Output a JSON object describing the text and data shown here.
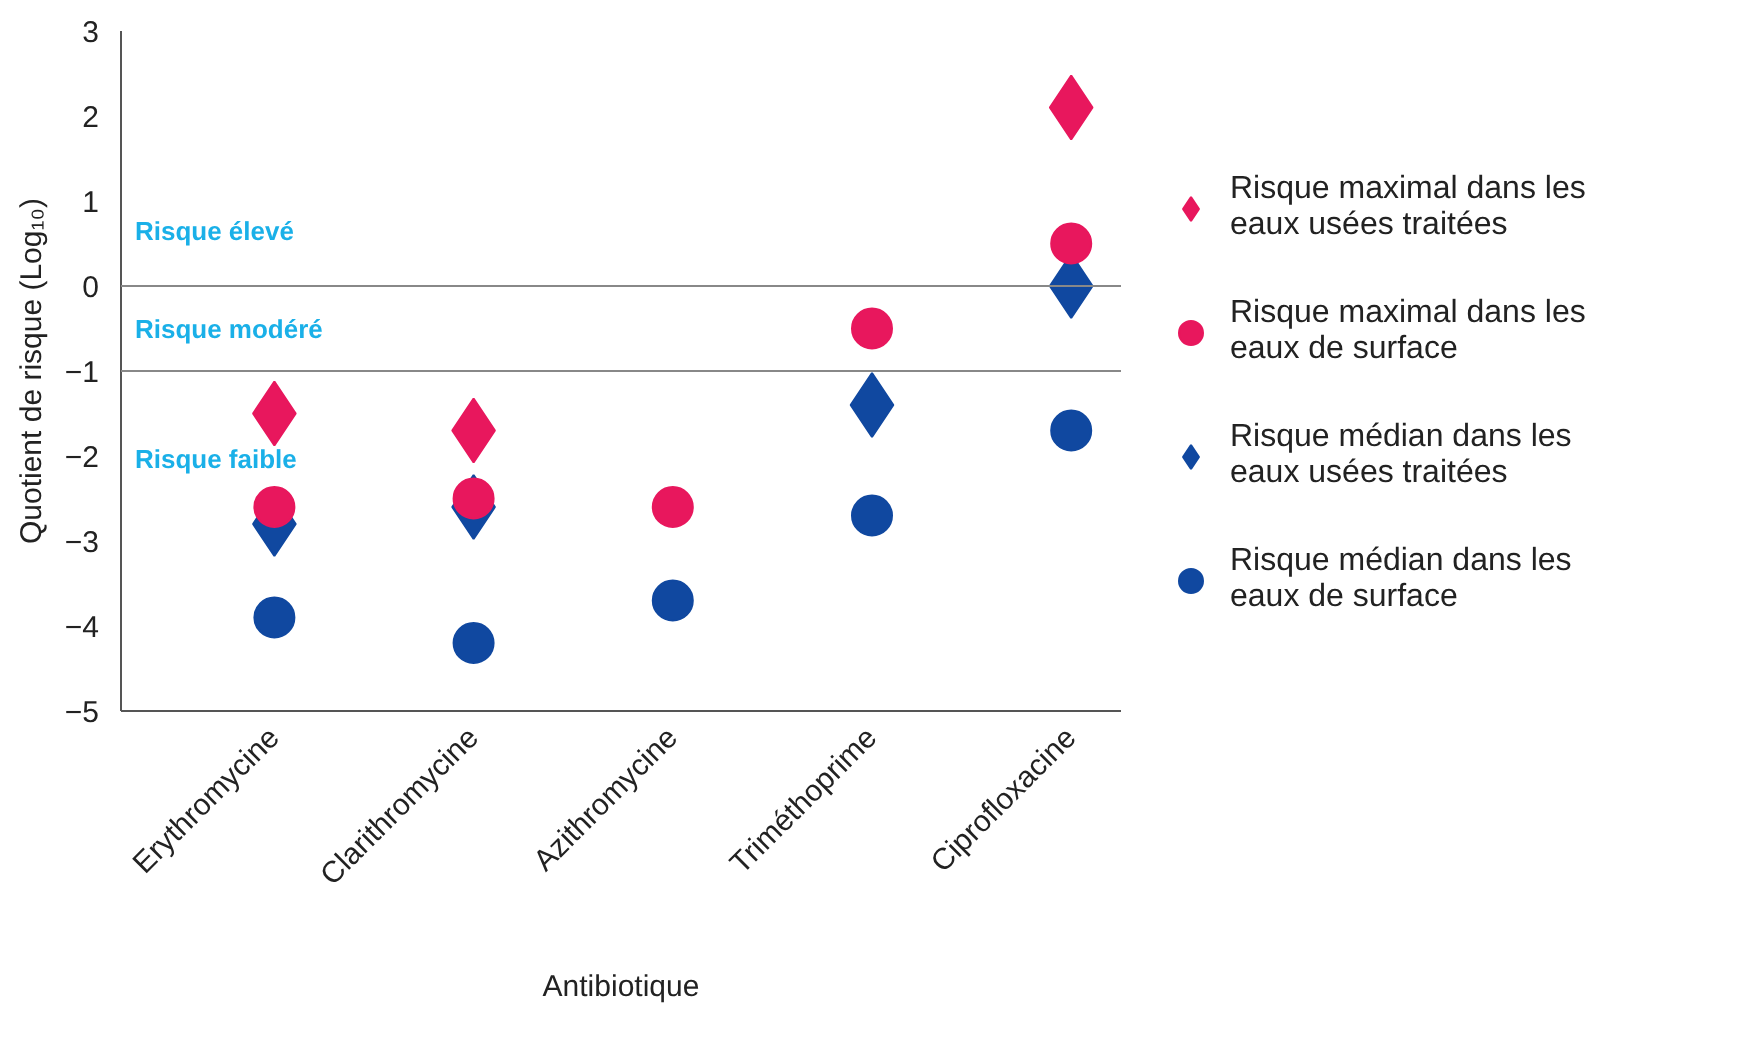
{
  "chart_data": {
    "type": "scatter",
    "xlabel": "Antibiotique",
    "ylabel": "Quotient de risque (Log₁₀)",
    "categories": [
      "Erythromycine",
      "Clarithromycine",
      "Azithromycine",
      "Triméthoprime",
      "Ciprofloxacine"
    ],
    "series": [
      {
        "name": "Risque maximal dans les eaux usées traitées",
        "color": "#e8175d",
        "marker": "diamond",
        "values": [
          -1.5,
          -1.7,
          null,
          null,
          2.1
        ]
      },
      {
        "name": "Risque maximal dans les eaux de surface",
        "color": "#e8175d",
        "marker": "circle",
        "values": [
          -2.6,
          -2.5,
          -2.6,
          -0.5,
          0.5
        ]
      },
      {
        "name": "Risque médian dans les eaux usées traitées",
        "color": "#1048a0",
        "marker": "diamond",
        "values": [
          -2.8,
          -2.6,
          null,
          -1.4,
          0.0
        ]
      },
      {
        "name": "Risque médian dans les eaux de surface",
        "color": "#1048a0",
        "marker": "circle",
        "values": [
          -3.9,
          -4.2,
          -3.7,
          -2.7,
          -1.7
        ]
      }
    ],
    "ylim": [
      -5,
      3
    ],
    "yticks": [
      -5,
      -4,
      -3,
      -2,
      -1,
      0,
      1,
      2,
      3
    ],
    "ref_lines": [
      {
        "axis": "y",
        "value": 0,
        "color": "#888888"
      },
      {
        "axis": "y",
        "value": -1,
        "color": "#888888"
      }
    ],
    "annotations": [
      "Risque élevé",
      "Risque modéré",
      "Risque faible"
    ],
    "grid": false,
    "legend": "right"
  }
}
